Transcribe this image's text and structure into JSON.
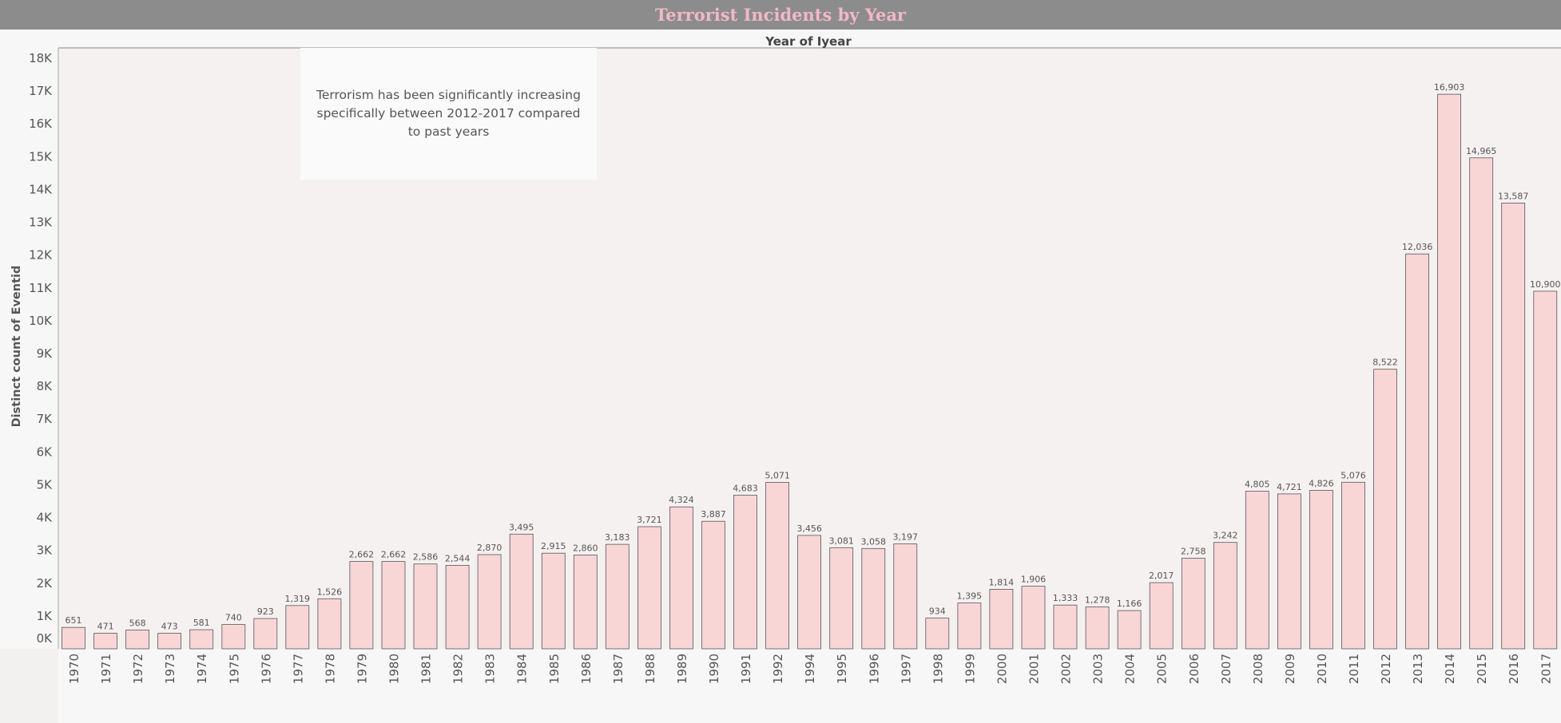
{
  "header": {
    "title": "Terrorist Incidents by Year"
  },
  "annotation": {
    "text": "Terrorism has been significantly increasing specifically between 2012-2017 compared to past years"
  },
  "colors": {
    "bar_fill": "#f9d6d6",
    "bar_stroke": "#555555",
    "title_color": "#f2b8c6",
    "plot_bg": "#f6f1f1",
    "title_bar_bg": "#8c8c8c"
  },
  "chart_data": {
    "type": "bar",
    "title": "Terrorist Incidents by Year",
    "column_header": "Year of Iyear",
    "xlabel": "",
    "ylabel": "Distinct count of Eventid",
    "ylim": [
      0,
      18000
    ],
    "yticks": [
      "0K",
      "1K",
      "2K",
      "3K",
      "4K",
      "5K",
      "6K",
      "7K",
      "8K",
      "9K",
      "10K",
      "11K",
      "12K",
      "13K",
      "14K",
      "15K",
      "16K",
      "17K",
      "18K"
    ],
    "grid": false,
    "categories": [
      "1970",
      "1971",
      "1972",
      "1973",
      "1974",
      "1975",
      "1976",
      "1977",
      "1978",
      "1979",
      "1980",
      "1981",
      "1982",
      "1983",
      "1984",
      "1985",
      "1986",
      "1987",
      "1988",
      "1989",
      "1990",
      "1991",
      "1992",
      "1994",
      "1995",
      "1996",
      "1997",
      "1998",
      "1999",
      "2000",
      "2001",
      "2002",
      "2003",
      "2004",
      "2005",
      "2006",
      "2007",
      "2008",
      "2009",
      "2010",
      "2011",
      "2012",
      "2013",
      "2014",
      "2015",
      "2016",
      "2017"
    ],
    "values": [
      651,
      471,
      568,
      473,
      581,
      740,
      923,
      1319,
      1526,
      2662,
      2662,
      2586,
      2544,
      2870,
      3495,
      2915,
      2860,
      3183,
      3721,
      4324,
      3887,
      4683,
      5071,
      3456,
      3081,
      3058,
      3197,
      934,
      1395,
      1814,
      1906,
      1333,
      1278,
      1166,
      2017,
      2758,
      3242,
      4805,
      4721,
      4826,
      5076,
      8522,
      12036,
      16903,
      14965,
      13587,
      10900
    ],
    "data_labels": [
      "651",
      "471",
      "568",
      "473",
      "581",
      "740",
      "923",
      "1,319",
      "1,526",
      "2,662",
      "2,662",
      "2,586",
      "2,544",
      "2,870",
      "3,495",
      "2,915",
      "2,860",
      "3,183",
      "3,721",
      "4,324",
      "3,887",
      "4,683",
      "5,071",
      "3,456",
      "3,081",
      "3,058",
      "3,197",
      "934",
      "1,395",
      "1,814",
      "1,906",
      "1,333",
      "1,278",
      "1,166",
      "2,017",
      "2,758",
      "3,242",
      "4,805",
      "4,721",
      "4,826",
      "5,076",
      "8,522",
      "12,036",
      "16,903",
      "14,965",
      "13,587",
      "10,900"
    ]
  }
}
